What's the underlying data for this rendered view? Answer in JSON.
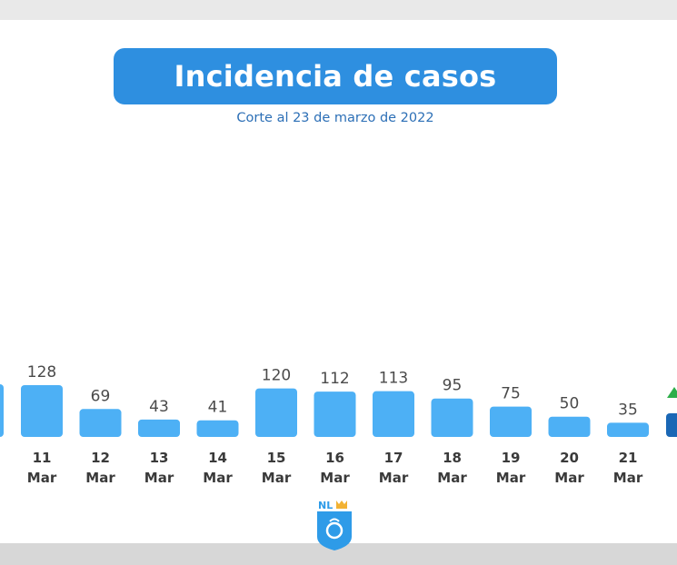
{
  "header": {
    "title": "Incidencia de casos",
    "subtitle": "Corte al 23 de marzo de 2022"
  },
  "logo": {
    "text": "NL"
  },
  "colors": {
    "title_bar": "#2e8fe0",
    "bar": "#4db0f5",
    "bar_highlight": "#1a67b5",
    "label": "#4a4a4a",
    "tick": "#3a3a3a",
    "arrow": "#2eae4a"
  },
  "chart_data": {
    "type": "bar",
    "title": "Incidencia de casos",
    "subtitle": "Corte al 23 de marzo de 2022",
    "categories": [
      {
        "day": "11",
        "month": "Mar"
      },
      {
        "day": "12",
        "month": "Mar"
      },
      {
        "day": "13",
        "month": "Mar"
      },
      {
        "day": "14",
        "month": "Mar"
      },
      {
        "day": "15",
        "month": "Mar"
      },
      {
        "day": "16",
        "month": "Mar"
      },
      {
        "day": "17",
        "month": "Mar"
      },
      {
        "day": "18",
        "month": "Mar"
      },
      {
        "day": "19",
        "month": "Mar"
      },
      {
        "day": "20",
        "month": "Mar"
      },
      {
        "day": "21",
        "month": "Mar"
      }
    ],
    "values": [
      128,
      69,
      43,
      41,
      120,
      112,
      113,
      95,
      75,
      50,
      35
    ],
    "data_labels": true,
    "grid": false,
    "legend": "none"
  }
}
